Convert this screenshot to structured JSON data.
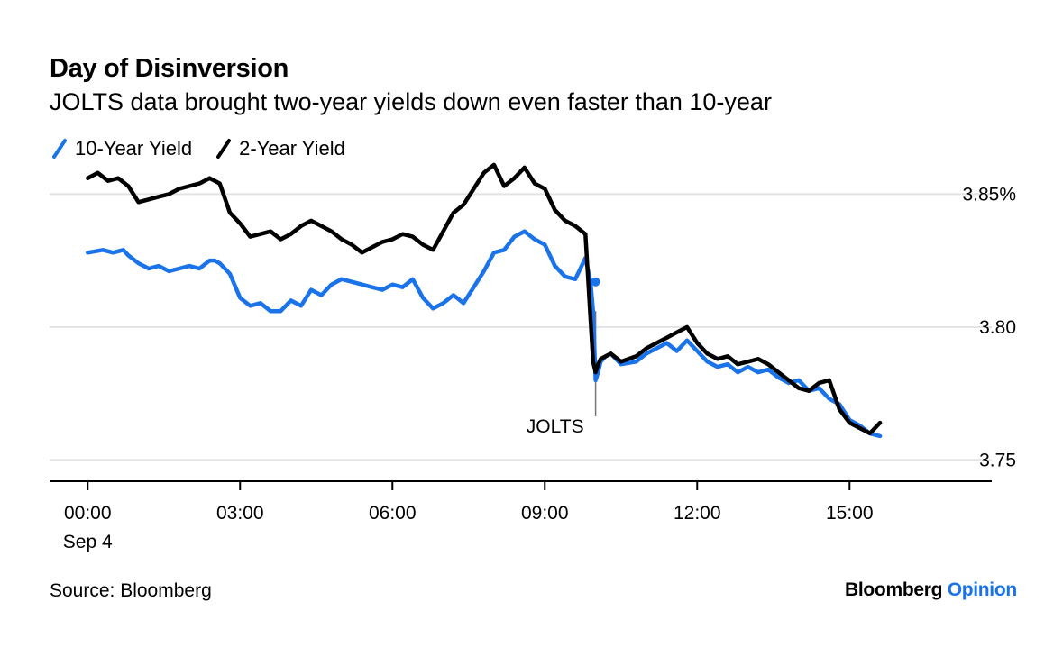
{
  "title": "Day of Disinversion",
  "subtitle": "JOLTS data brought two-year yields down even faster than 10-year",
  "legend": [
    {
      "name": "10-Year Yield",
      "color": "#1a73e8"
    },
    {
      "name": "2-Year Yield",
      "color": "#000000"
    }
  ],
  "source": "Source: Bloomberg",
  "brand": {
    "main": "Bloomberg",
    "accent": "Opinion"
  },
  "annotation": {
    "label": "JOLTS",
    "x": 10.0
  },
  "chart_data": {
    "type": "line",
    "title": "Day of Disinversion",
    "subtitle": "JOLTS data brought two-year yields down even faster than 10-year",
    "xlabel": "",
    "ylabel": "",
    "x_ticks": [
      {
        "value": 0,
        "label": "00:00",
        "sublabel": "Sep 4"
      },
      {
        "value": 3,
        "label": "03:00",
        "sublabel": ""
      },
      {
        "value": 6,
        "label": "06:00",
        "sublabel": ""
      },
      {
        "value": 9,
        "label": "09:00",
        "sublabel": ""
      },
      {
        "value": 12,
        "label": "12:00",
        "sublabel": ""
      },
      {
        "value": 15,
        "label": "15:00",
        "sublabel": ""
      }
    ],
    "y_ticks": [
      {
        "value": 3.85,
        "label": "3.85%"
      },
      {
        "value": 3.8,
        "label": "3.80"
      },
      {
        "value": 3.75,
        "label": "3.75"
      }
    ],
    "xlim": [
      -0.75,
      17.8
    ],
    "ylim": [
      3.742,
      3.862
    ],
    "grid": true,
    "legend_position": "top-left",
    "series": [
      {
        "name": "10-Year Yield",
        "color": "#1a73e8",
        "x": [
          0.0,
          0.3,
          0.5,
          0.7,
          0.8,
          1.0,
          1.2,
          1.4,
          1.6,
          1.8,
          2.0,
          2.2,
          2.4,
          2.5,
          2.6,
          2.8,
          3.0,
          3.2,
          3.4,
          3.6,
          3.8,
          4.0,
          4.2,
          4.4,
          4.6,
          4.8,
          5.0,
          5.2,
          5.4,
          5.6,
          5.8,
          6.0,
          6.2,
          6.4,
          6.6,
          6.8,
          7.0,
          7.2,
          7.4,
          7.6,
          7.8,
          8.0,
          8.2,
          8.4,
          8.6,
          8.8,
          9.0,
          9.2,
          9.4,
          9.6,
          9.8,
          9.9,
          9.95,
          10.0,
          10.05,
          10.1,
          10.2,
          10.3,
          10.5,
          10.8,
          11.0,
          11.2,
          11.4,
          11.6,
          11.8,
          12.0,
          12.2,
          12.4,
          12.6,
          12.8,
          13.0,
          13.2,
          13.4,
          13.6,
          13.8,
          14.0,
          14.2,
          14.4,
          14.6,
          14.8,
          15.0,
          15.2,
          15.4,
          15.6
        ],
        "values": [
          3.828,
          3.829,
          3.828,
          3.829,
          3.827,
          3.824,
          3.822,
          3.823,
          3.821,
          3.822,
          3.823,
          3.822,
          3.825,
          3.825,
          3.824,
          3.82,
          3.811,
          3.808,
          3.809,
          3.806,
          3.806,
          3.81,
          3.808,
          3.814,
          3.812,
          3.816,
          3.818,
          3.817,
          3.816,
          3.815,
          3.814,
          3.816,
          3.815,
          3.818,
          3.811,
          3.807,
          3.809,
          3.812,
          3.809,
          3.815,
          3.821,
          3.828,
          3.829,
          3.834,
          3.836,
          3.833,
          3.831,
          3.823,
          3.819,
          3.818,
          3.826,
          3.817,
          3.806,
          3.78,
          3.783,
          3.787,
          3.789,
          3.79,
          3.786,
          3.787,
          3.79,
          3.792,
          3.794,
          3.791,
          3.795,
          3.791,
          3.787,
          3.785,
          3.786,
          3.783,
          3.785,
          3.783,
          3.784,
          3.781,
          3.779,
          3.78,
          3.776,
          3.777,
          3.773,
          3.771,
          3.765,
          3.763,
          3.76,
          3.759
        ]
      },
      {
        "name": "2-Year Yield",
        "color": "#000000",
        "x": [
          0.0,
          0.2,
          0.4,
          0.6,
          0.8,
          1.0,
          1.2,
          1.4,
          1.6,
          1.8,
          2.0,
          2.2,
          2.4,
          2.6,
          2.8,
          3.0,
          3.2,
          3.4,
          3.6,
          3.8,
          4.0,
          4.2,
          4.4,
          4.6,
          4.8,
          5.0,
          5.2,
          5.4,
          5.6,
          5.8,
          6.0,
          6.2,
          6.4,
          6.6,
          6.8,
          7.0,
          7.2,
          7.4,
          7.6,
          7.8,
          8.0,
          8.2,
          8.4,
          8.6,
          8.8,
          9.0,
          9.2,
          9.4,
          9.6,
          9.8,
          9.95,
          10.0,
          10.05,
          10.1,
          10.2,
          10.3,
          10.5,
          10.8,
          11.0,
          11.2,
          11.4,
          11.6,
          11.8,
          12.0,
          12.2,
          12.4,
          12.6,
          12.8,
          13.0,
          13.2,
          13.4,
          13.6,
          13.8,
          14.0,
          14.2,
          14.4,
          14.6,
          14.8,
          15.0,
          15.2,
          15.4,
          15.6
        ],
        "values": [
          3.856,
          3.858,
          3.855,
          3.856,
          3.853,
          3.847,
          3.848,
          3.849,
          3.85,
          3.852,
          3.853,
          3.854,
          3.856,
          3.854,
          3.843,
          3.839,
          3.834,
          3.835,
          3.836,
          3.833,
          3.835,
          3.838,
          3.84,
          3.838,
          3.836,
          3.833,
          3.831,
          3.828,
          3.83,
          3.832,
          3.833,
          3.835,
          3.834,
          3.831,
          3.829,
          3.836,
          3.843,
          3.846,
          3.852,
          3.858,
          3.861,
          3.853,
          3.856,
          3.86,
          3.854,
          3.852,
          3.844,
          3.84,
          3.838,
          3.835,
          3.787,
          3.783,
          3.786,
          3.788,
          3.789,
          3.79,
          3.787,
          3.789,
          3.792,
          3.794,
          3.796,
          3.798,
          3.8,
          3.794,
          3.79,
          3.788,
          3.789,
          3.786,
          3.787,
          3.788,
          3.786,
          3.783,
          3.78,
          3.777,
          3.776,
          3.779,
          3.78,
          3.769,
          3.764,
          3.762,
          3.76,
          3.764
        ]
      }
    ],
    "annotations": [
      {
        "text": "JOLTS",
        "x": 10.0
      }
    ]
  }
}
